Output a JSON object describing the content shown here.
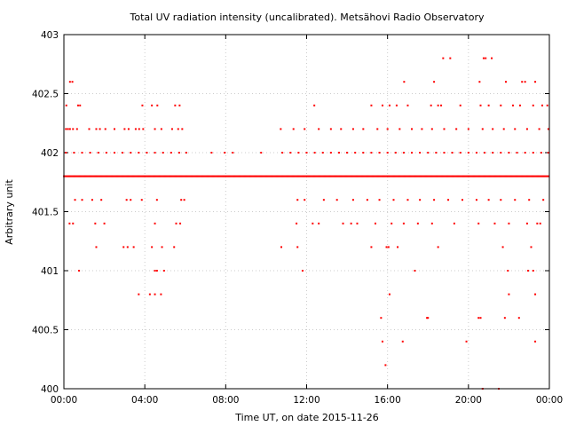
{
  "chart_data": {
    "type": "scatter",
    "title": "Total UV radiation intensity (uncalibrated). Metsähovi Radio Observatory",
    "xlabel": "Time UT, on date 2015-11-26",
    "ylabel": "Arbitrary unit",
    "xlim": [
      0,
      24
    ],
    "ylim": [
      400,
      403
    ],
    "x_ticks": [
      {
        "value": 0,
        "label": "00:00"
      },
      {
        "value": 4,
        "label": "04:00"
      },
      {
        "value": 8,
        "label": "08:00"
      },
      {
        "value": 12,
        "label": "12:00"
      },
      {
        "value": 16,
        "label": "16:00"
      },
      {
        "value": 20,
        "label": "20:00"
      },
      {
        "value": 24,
        "label": "00:00"
      }
    ],
    "y_ticks": [
      {
        "value": 400,
        "label": "400"
      },
      {
        "value": 400.5,
        "label": "400.5"
      },
      {
        "value": 401,
        "label": "401"
      },
      {
        "value": 401.5,
        "label": "401.5"
      },
      {
        "value": 402,
        "label": "402"
      },
      {
        "value": 402.5,
        "label": "402.5"
      },
      {
        "value": 403,
        "label": "403"
      }
    ],
    "grid": true,
    "marker_color": "#ff0000",
    "series": [
      {
        "points": [
          [
            0.12,
            402.4
          ],
          [
            0.3,
            402.6
          ],
          [
            0.42,
            402.6
          ],
          [
            0.7,
            402.4
          ],
          [
            0.8,
            402.4
          ],
          [
            3.88,
            402.4
          ],
          [
            4.35,
            402.4
          ],
          [
            4.62,
            402.4
          ],
          [
            5.5,
            402.4
          ],
          [
            5.72,
            402.4
          ],
          [
            12.38,
            402.4
          ],
          [
            15.2,
            402.4
          ],
          [
            15.75,
            402.4
          ],
          [
            16.1,
            402.4
          ],
          [
            16.45,
            402.4
          ],
          [
            17.0,
            402.4
          ],
          [
            18.15,
            402.4
          ],
          [
            18.5,
            402.4
          ],
          [
            18.65,
            402.4
          ],
          [
            19.6,
            402.4
          ],
          [
            20.6,
            402.4
          ],
          [
            21.0,
            402.4
          ],
          [
            21.6,
            402.4
          ],
          [
            22.2,
            402.4
          ],
          [
            22.55,
            402.4
          ],
          [
            23.2,
            402.4
          ],
          [
            23.65,
            402.4
          ],
          [
            23.9,
            402.4
          ],
          [
            16.82,
            402.6
          ],
          [
            18.3,
            402.6
          ],
          [
            20.55,
            402.6
          ],
          [
            21.85,
            402.6
          ],
          [
            22.65,
            402.6
          ],
          [
            22.8,
            402.6
          ],
          [
            23.3,
            402.6
          ],
          [
            18.75,
            402.8
          ],
          [
            19.1,
            402.8
          ],
          [
            20.75,
            402.8
          ],
          [
            20.85,
            402.8
          ],
          [
            21.15,
            402.8
          ],
          [
            0.1,
            402.2
          ],
          [
            0.2,
            402.2
          ],
          [
            0.3,
            402.2
          ],
          [
            0.45,
            402.2
          ],
          [
            0.65,
            402.2
          ],
          [
            1.25,
            402.2
          ],
          [
            1.6,
            402.2
          ],
          [
            1.78,
            402.2
          ],
          [
            2.05,
            402.2
          ],
          [
            2.5,
            402.2
          ],
          [
            3.0,
            402.2
          ],
          [
            3.2,
            402.2
          ],
          [
            3.55,
            402.2
          ],
          [
            3.72,
            402.2
          ],
          [
            3.92,
            402.2
          ],
          [
            4.5,
            402.2
          ],
          [
            4.82,
            402.2
          ],
          [
            5.35,
            402.2
          ],
          [
            5.65,
            402.2
          ],
          [
            5.85,
            402.2
          ],
          [
            10.72,
            402.2
          ],
          [
            11.35,
            402.2
          ],
          [
            11.9,
            402.2
          ],
          [
            12.6,
            402.2
          ],
          [
            13.2,
            402.2
          ],
          [
            13.7,
            402.2
          ],
          [
            14.3,
            402.2
          ],
          [
            14.8,
            402.2
          ],
          [
            15.5,
            402.2
          ],
          [
            16.0,
            402.2
          ],
          [
            16.6,
            402.2
          ],
          [
            17.2,
            402.2
          ],
          [
            17.7,
            402.2
          ],
          [
            18.2,
            402.2
          ],
          [
            18.8,
            402.2
          ],
          [
            19.4,
            402.2
          ],
          [
            20.0,
            402.2
          ],
          [
            20.7,
            402.2
          ],
          [
            21.2,
            402.2
          ],
          [
            21.75,
            402.2
          ],
          [
            22.3,
            402.2
          ],
          [
            22.9,
            402.2
          ],
          [
            23.5,
            402.2
          ],
          [
            23.95,
            402.2
          ],
          [
            0.1,
            402.0
          ],
          [
            0.5,
            402.0
          ],
          [
            0.9,
            402.0
          ],
          [
            1.3,
            402.0
          ],
          [
            1.7,
            402.0
          ],
          [
            2.1,
            402.0
          ],
          [
            2.5,
            402.0
          ],
          [
            2.9,
            402.0
          ],
          [
            3.3,
            402.0
          ],
          [
            3.7,
            402.0
          ],
          [
            4.1,
            402.0
          ],
          [
            4.5,
            402.0
          ],
          [
            4.9,
            402.0
          ],
          [
            5.3,
            402.0
          ],
          [
            5.7,
            402.0
          ],
          [
            6.05,
            402.0
          ],
          [
            7.3,
            402.0
          ],
          [
            7.95,
            402.0
          ],
          [
            8.35,
            402.0
          ],
          [
            9.75,
            402.0
          ],
          [
            10.8,
            402.0
          ],
          [
            11.2,
            402.0
          ],
          [
            11.6,
            402.0
          ],
          [
            12.0,
            402.0
          ],
          [
            12.4,
            402.0
          ],
          [
            12.8,
            402.0
          ],
          [
            13.2,
            402.0
          ],
          [
            13.6,
            402.0
          ],
          [
            14.0,
            402.0
          ],
          [
            14.4,
            402.0
          ],
          [
            14.8,
            402.0
          ],
          [
            15.2,
            402.0
          ],
          [
            15.6,
            402.0
          ],
          [
            16.0,
            402.0
          ],
          [
            16.4,
            402.0
          ],
          [
            16.8,
            402.0
          ],
          [
            17.2,
            402.0
          ],
          [
            17.6,
            402.0
          ],
          [
            18.0,
            402.0
          ],
          [
            18.4,
            402.0
          ],
          [
            18.8,
            402.0
          ],
          [
            19.2,
            402.0
          ],
          [
            19.6,
            402.0
          ],
          [
            20.0,
            402.0
          ],
          [
            20.4,
            402.0
          ],
          [
            20.8,
            402.0
          ],
          [
            21.2,
            402.0
          ],
          [
            21.6,
            402.0
          ],
          [
            22.0,
            402.0
          ],
          [
            22.4,
            402.0
          ],
          [
            22.8,
            402.0
          ],
          [
            23.2,
            402.0
          ],
          [
            23.6,
            402.0
          ],
          [
            23.95,
            402.0
          ],
          [
            0.55,
            401.6
          ],
          [
            0.9,
            401.6
          ],
          [
            1.4,
            401.6
          ],
          [
            1.85,
            401.6
          ],
          [
            3.1,
            401.6
          ],
          [
            3.3,
            401.6
          ],
          [
            3.85,
            401.6
          ],
          [
            4.6,
            401.6
          ],
          [
            5.8,
            401.6
          ],
          [
            5.95,
            401.6
          ],
          [
            11.55,
            401.6
          ],
          [
            11.9,
            401.6
          ],
          [
            12.85,
            401.6
          ],
          [
            13.5,
            401.6
          ],
          [
            14.3,
            401.6
          ],
          [
            15.0,
            401.6
          ],
          [
            15.6,
            401.6
          ],
          [
            16.3,
            401.6
          ],
          [
            17.0,
            401.6
          ],
          [
            17.6,
            401.6
          ],
          [
            18.3,
            401.6
          ],
          [
            19.0,
            401.6
          ],
          [
            19.7,
            401.6
          ],
          [
            20.4,
            401.6
          ],
          [
            21.0,
            401.6
          ],
          [
            21.6,
            401.6
          ],
          [
            22.3,
            401.6
          ],
          [
            23.0,
            401.6
          ],
          [
            23.7,
            401.6
          ],
          [
            0.28,
            401.4
          ],
          [
            0.45,
            401.4
          ],
          [
            1.55,
            401.4
          ],
          [
            2.0,
            401.4
          ],
          [
            4.5,
            401.4
          ],
          [
            5.55,
            401.4
          ],
          [
            5.75,
            401.4
          ],
          [
            11.5,
            401.4
          ],
          [
            12.3,
            401.4
          ],
          [
            12.6,
            401.4
          ],
          [
            13.8,
            401.4
          ],
          [
            14.2,
            401.4
          ],
          [
            14.5,
            401.4
          ],
          [
            15.4,
            401.4
          ],
          [
            16.2,
            401.4
          ],
          [
            16.8,
            401.4
          ],
          [
            17.5,
            401.4
          ],
          [
            18.2,
            401.4
          ],
          [
            19.3,
            401.4
          ],
          [
            20.5,
            401.4
          ],
          [
            21.3,
            401.4
          ],
          [
            22.0,
            401.4
          ],
          [
            22.9,
            401.4
          ],
          [
            23.4,
            401.4
          ],
          [
            23.55,
            401.4
          ],
          [
            1.6,
            401.2
          ],
          [
            2.95,
            401.2
          ],
          [
            3.15,
            401.2
          ],
          [
            3.45,
            401.2
          ],
          [
            4.35,
            401.2
          ],
          [
            4.85,
            401.2
          ],
          [
            5.45,
            401.2
          ],
          [
            10.75,
            401.2
          ],
          [
            11.55,
            401.2
          ],
          [
            15.2,
            401.2
          ],
          [
            15.95,
            401.2
          ],
          [
            16.05,
            401.2
          ],
          [
            16.5,
            401.2
          ],
          [
            18.5,
            401.2
          ],
          [
            21.7,
            401.2
          ],
          [
            23.1,
            401.2
          ],
          [
            0.75,
            401.0
          ],
          [
            4.5,
            401.0
          ],
          [
            4.6,
            401.0
          ],
          [
            4.95,
            401.0
          ],
          [
            11.8,
            401.0
          ],
          [
            17.35,
            401.0
          ],
          [
            21.95,
            401.0
          ],
          [
            22.95,
            401.0
          ],
          [
            23.2,
            401.0
          ],
          [
            3.7,
            400.8
          ],
          [
            4.25,
            400.8
          ],
          [
            4.5,
            400.8
          ],
          [
            4.8,
            400.8
          ],
          [
            16.1,
            400.8
          ],
          [
            22.0,
            400.8
          ],
          [
            23.3,
            400.8
          ],
          [
            15.68,
            400.6
          ],
          [
            17.95,
            400.6
          ],
          [
            18.0,
            400.6
          ],
          [
            20.5,
            400.6
          ],
          [
            20.6,
            400.6
          ],
          [
            21.8,
            400.6
          ],
          [
            22.5,
            400.6
          ],
          [
            15.75,
            400.4
          ],
          [
            16.75,
            400.4
          ],
          [
            19.9,
            400.4
          ],
          [
            23.3,
            400.4
          ],
          [
            15.9,
            400.2
          ],
          [
            20.7,
            400.0
          ],
          [
            21.5,
            400.0
          ]
        ]
      }
    ],
    "dense_line": {
      "y": 401.8,
      "x_from": 0.0,
      "x_to": 24.0
    }
  }
}
